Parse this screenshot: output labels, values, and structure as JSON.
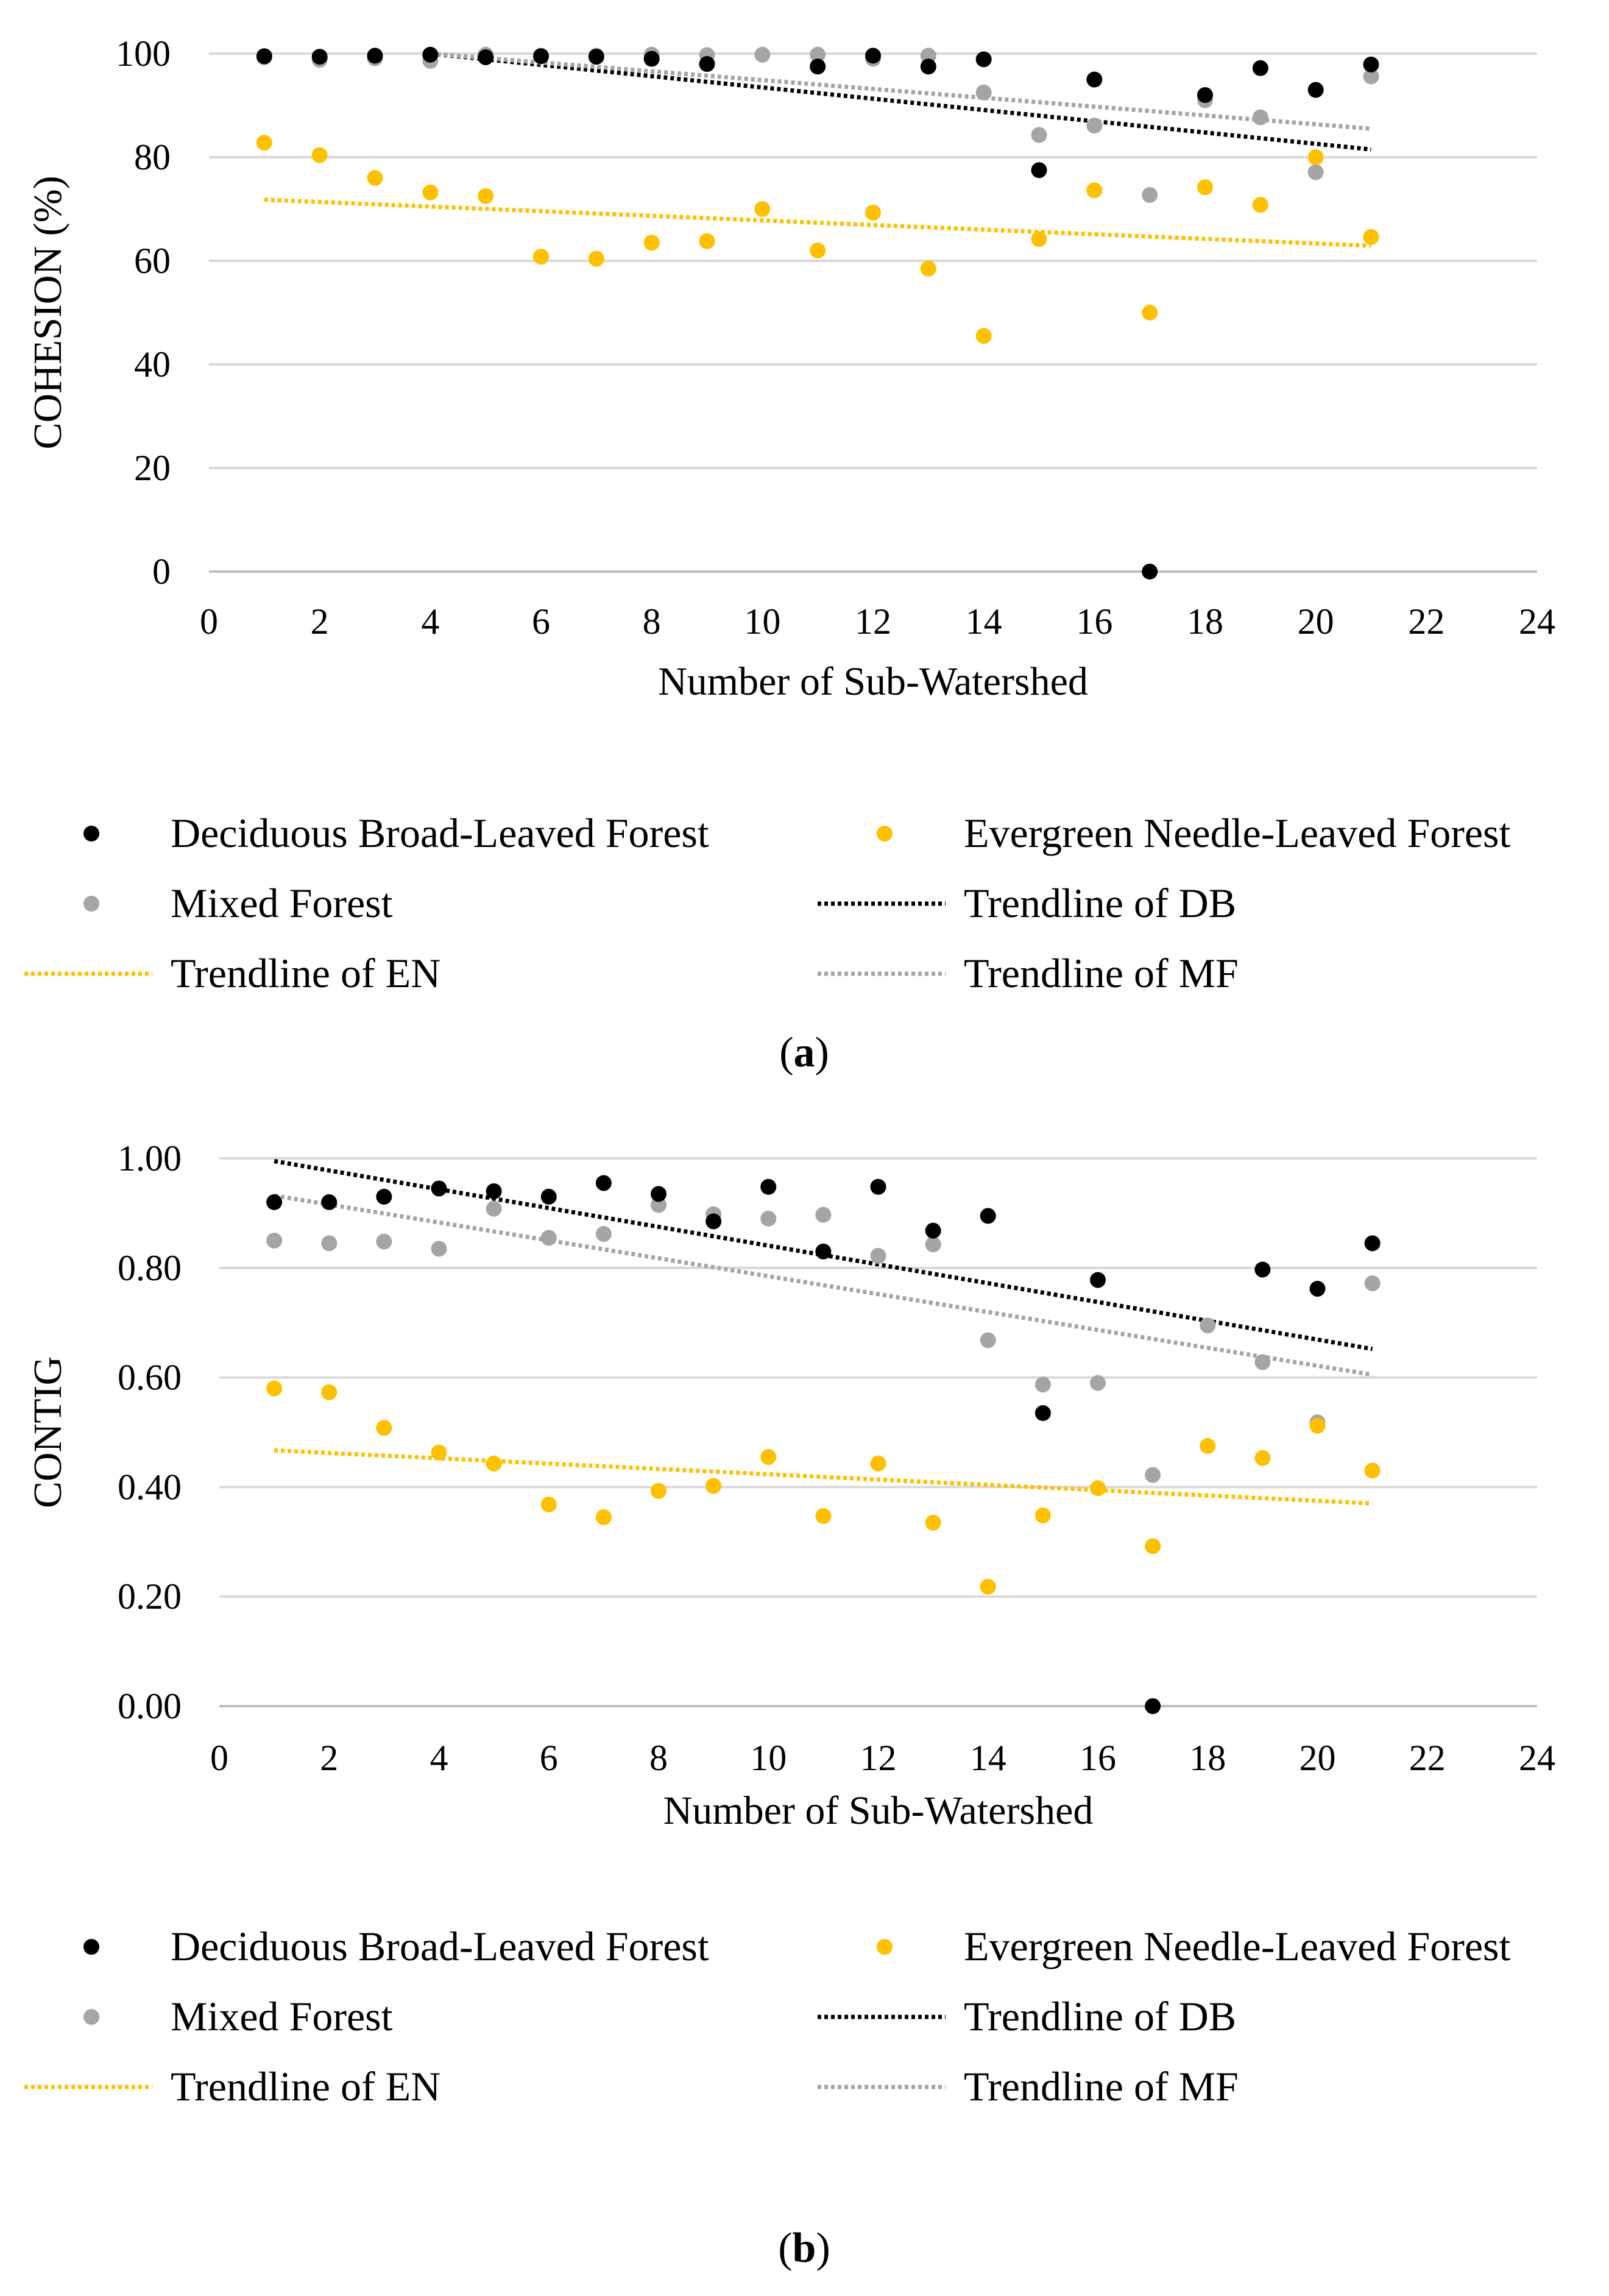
{
  "chart_data": [
    {
      "type": "scatter",
      "panel": "a",
      "caption_label": "a",
      "title": "",
      "xlabel": "Number of Sub-Watershed",
      "ylabel": "COHESION (%)",
      "xlim": [
        0,
        24
      ],
      "ylim": [
        0,
        100
      ],
      "xticks": [
        0,
        2,
        4,
        6,
        8,
        10,
        12,
        14,
        16,
        18,
        20,
        22,
        24
      ],
      "yticks": [
        0,
        20,
        40,
        60,
        80,
        100
      ],
      "ytick_labels": [
        "0",
        "20",
        "40",
        "60",
        "80",
        "100"
      ],
      "grid": true,
      "legend_position": "bottom",
      "x": [
        1,
        2,
        3,
        4,
        5,
        6,
        7,
        8,
        9,
        10,
        11,
        12,
        13,
        14,
        15,
        16,
        17,
        18,
        19,
        20,
        21
      ],
      "series": [
        {
          "name": "Deciduous Broad-Leaved Forest",
          "color": "#000000",
          "values": [
            99.5,
            99.4,
            99.6,
            99.8,
            99.3,
            99.5,
            99.4,
            99.0,
            98.0,
            null,
            97.5,
            99.6,
            97.5,
            98.9,
            77.5,
            95.0,
            0,
            92.0,
            97.2,
            93.0,
            97.9
          ]
        },
        {
          "name": "Evergreen Needle-Leaved Forest",
          "color": "#FFC000",
          "values": [
            82.8,
            80.4,
            76.0,
            73.2,
            72.5,
            60.8,
            60.4,
            63.5,
            63.8,
            70.0,
            62.0,
            69.3,
            58.5,
            45.5,
            64.2,
            73.6,
            50.0,
            74.2,
            70.8,
            80.0,
            64.6
          ]
        },
        {
          "name": "Mixed Forest",
          "color": "#A5A5A5",
          "values": [
            99.3,
            98.8,
            99.1,
            98.6,
            99.8,
            99.6,
            99.6,
            99.8,
            99.7,
            99.8,
            99.8,
            99.0,
            99.6,
            92.5,
            84.3,
            86.1,
            72.7,
            91.0,
            87.7,
            77.1,
            95.6
          ]
        }
      ],
      "trendlines": [
        {
          "name": "Trendline of DB",
          "color": "#000000",
          "x_range": [
            4,
            21
          ],
          "y_range": [
            100.0,
            81.5
          ]
        },
        {
          "name": "Trendline of EN",
          "color": "#FFC000",
          "x_range": [
            1,
            21
          ],
          "y_range": [
            71.8,
            62.9
          ]
        },
        {
          "name": "Trendline of MF",
          "color": "#A5A5A5",
          "x_range": [
            4,
            21
          ],
          "y_range": [
            100.0,
            85.5
          ]
        }
      ]
    },
    {
      "type": "scatter",
      "panel": "b",
      "caption_label": "b",
      "title": "",
      "xlabel": "Number of Sub-Watershed",
      "ylabel": "CONTIG",
      "xlim": [
        0,
        24
      ],
      "ylim": [
        0,
        1
      ],
      "xticks": [
        0,
        2,
        4,
        6,
        8,
        10,
        12,
        14,
        16,
        18,
        20,
        22,
        24
      ],
      "yticks": [
        0,
        0.2,
        0.4,
        0.6,
        0.8,
        1.0
      ],
      "ytick_labels": [
        "0.00",
        "0.20",
        "0.40",
        "0.60",
        "0.80",
        "1.00"
      ],
      "grid": true,
      "legend_position": "bottom",
      "x": [
        1,
        2,
        3,
        4,
        5,
        6,
        7,
        8,
        9,
        10,
        11,
        12,
        13,
        14,
        15,
        16,
        17,
        18,
        19,
        20,
        21
      ],
      "series": [
        {
          "name": "Deciduous Broad-Leaved Forest",
          "color": "#000000",
          "values": [
            0.92,
            0.92,
            0.93,
            0.945,
            0.94,
            0.93,
            0.955,
            0.935,
            0.885,
            0.948,
            0.83,
            0.948,
            0.868,
            0.895,
            0.535,
            0.778,
            0,
            null,
            0.797,
            0.762,
            0.845
          ]
        },
        {
          "name": "Evergreen Needle-Leaved Forest",
          "color": "#FFC000",
          "values": [
            0.58,
            0.573,
            0.508,
            0.463,
            0.443,
            0.368,
            0.345,
            0.393,
            0.402,
            0.455,
            0.347,
            0.443,
            0.335,
            0.218,
            0.348,
            0.398,
            0.292,
            0.475,
            0.453,
            0.512,
            0.43
          ]
        },
        {
          "name": "Mixed Forest",
          "color": "#A5A5A5",
          "values": [
            0.85,
            0.845,
            0.848,
            0.835,
            0.908,
            0.855,
            0.862,
            0.915,
            0.898,
            0.89,
            0.897,
            0.822,
            0.843,
            0.668,
            0.587,
            0.59,
            0.422,
            0.695,
            0.628,
            0.518,
            0.772
          ]
        }
      ],
      "trendlines": [
        {
          "name": "Trendline of DB",
          "color": "#000000",
          "x_range": [
            1,
            21
          ],
          "y_range": [
            0.995,
            0.652
          ]
        },
        {
          "name": "Trendline of EN",
          "color": "#FFC000",
          "x_range": [
            1,
            21
          ],
          "y_range": [
            0.467,
            0.37
          ]
        },
        {
          "name": "Trendline of MF",
          "color": "#A5A5A5",
          "x_range": [
            1,
            21
          ],
          "y_range": [
            0.932,
            0.605
          ]
        }
      ]
    }
  ]
}
